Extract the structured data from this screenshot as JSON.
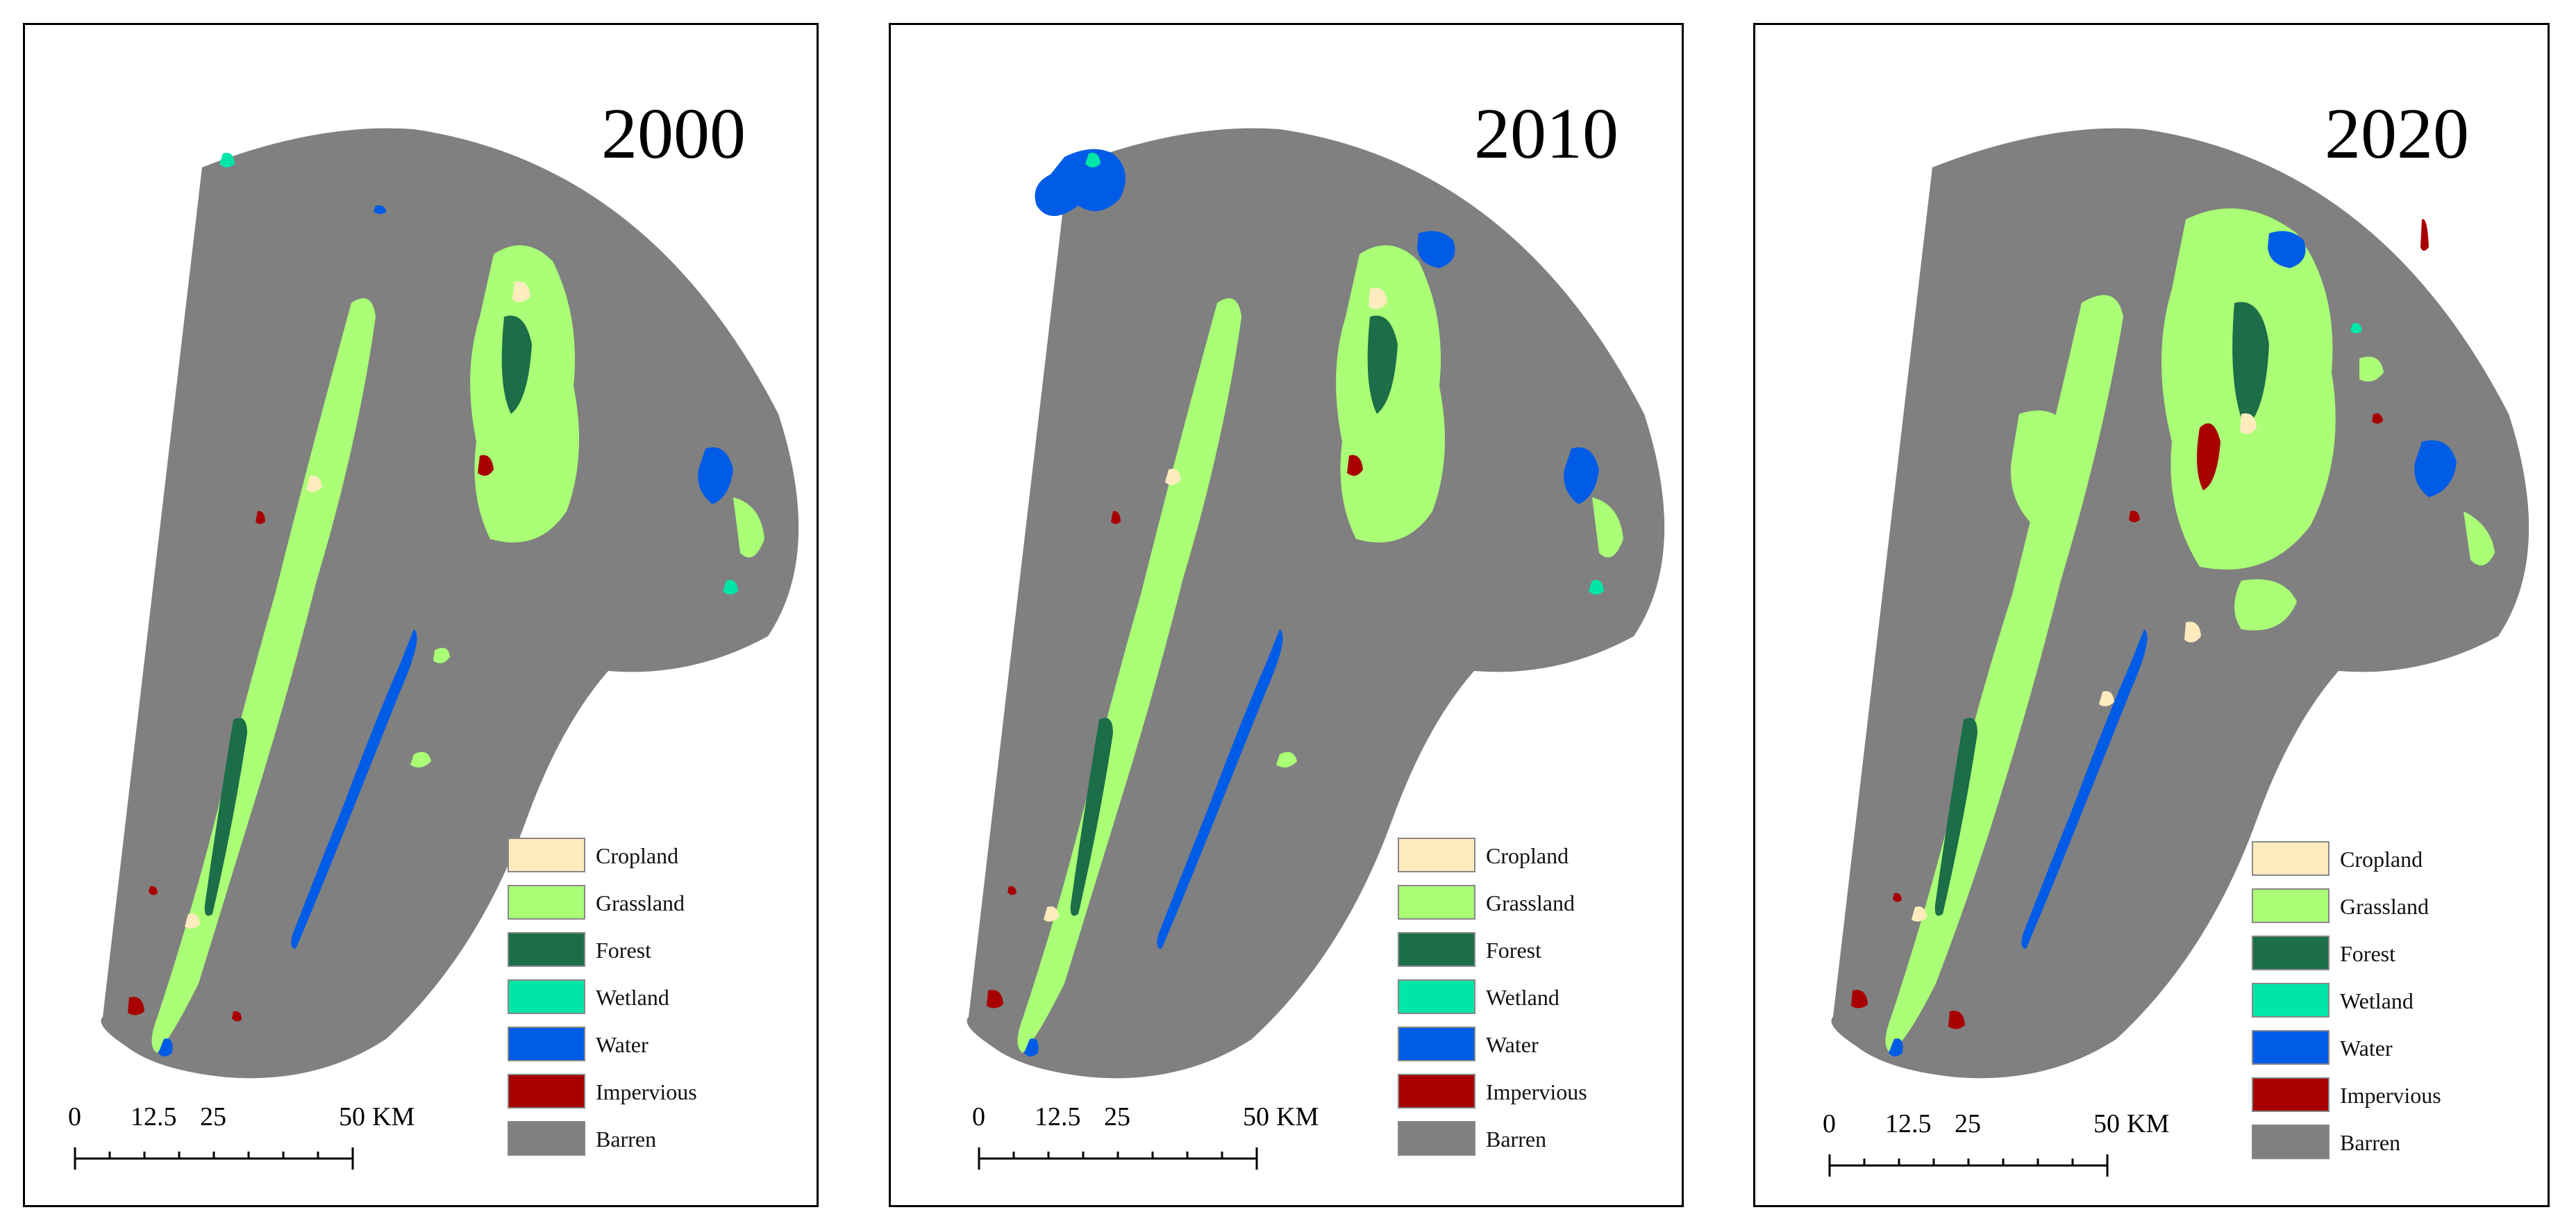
{
  "maps": [
    {
      "year": "2000"
    },
    {
      "year": "2010"
    },
    {
      "year": "2020"
    }
  ],
  "legend": [
    {
      "label": "Cropland",
      "color": "#ffebbe"
    },
    {
      "label": "Grassland",
      "color": "#aaff77"
    },
    {
      "label": "Forest",
      "color": "#1c6e48"
    },
    {
      "label": "Wetland",
      "color": "#00e6a9"
    },
    {
      "label": "Water",
      "color": "#005ce6"
    },
    {
      "label": "Impervious",
      "color": "#a80000"
    },
    {
      "label": "Barren",
      "color": "#808080"
    }
  ],
  "scale_bar": {
    "labels": [
      "0",
      "12.5",
      "25",
      "50"
    ],
    "unit": "KM"
  }
}
